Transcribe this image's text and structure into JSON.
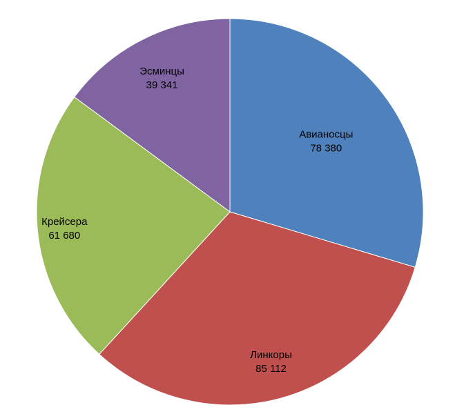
{
  "chart_data": {
    "type": "pie",
    "title": "",
    "slices": [
      {
        "label": "Авианосцы",
        "value": 78380,
        "value_label": "78 380",
        "color": "#4F81BD"
      },
      {
        "label": "Линкоры",
        "value": 85112,
        "value_label": "85 112",
        "color": "#C0504D"
      },
      {
        "label": "Крейсера",
        "value": 61680,
        "value_label": "61 680",
        "color": "#9BBB59"
      },
      {
        "label": "Эсминцы",
        "value": 39341,
        "value_label": "39 341",
        "color": "#8064A2"
      }
    ],
    "start_angle": "12 o'clock",
    "direction": "clockwise",
    "legend": "none",
    "data_labels": "inside slices (category name + value)"
  }
}
